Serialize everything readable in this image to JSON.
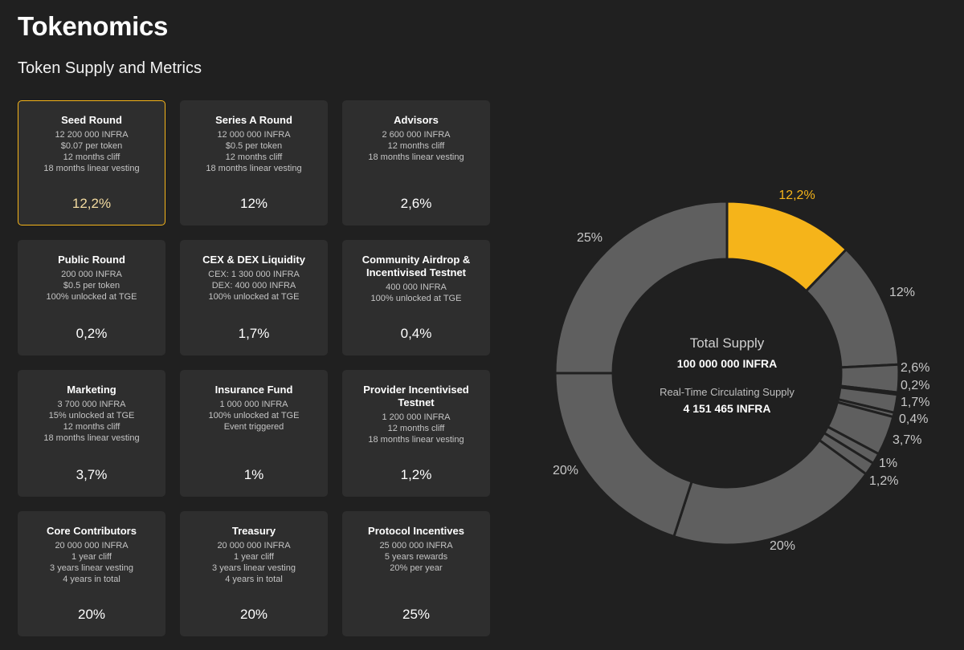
{
  "header": {
    "title": "Tokenomics",
    "subtitle": "Token Supply and Metrics"
  },
  "cards": [
    {
      "title": "Seed Round",
      "lines": [
        "12 200 000 INFRA",
        "$0.07 per token",
        "12 months cliff",
        "18 months linear vesting"
      ],
      "pct": "12,2%",
      "active": true
    },
    {
      "title": "Series A Round",
      "lines": [
        "12 000 000 INFRA",
        "$0.5 per token",
        "12 months cliff",
        "18 months linear vesting"
      ],
      "pct": "12%"
    },
    {
      "title": "Advisors",
      "lines": [
        "2 600 000 INFRA",
        "12 months cliff",
        "18 months linear vesting"
      ],
      "pct": "2,6%"
    },
    {
      "title": "Public Round",
      "lines": [
        "200 000 INFRA",
        "$0.5 per token",
        "100% unlocked at TGE"
      ],
      "pct": "0,2%"
    },
    {
      "title": "CEX & DEX Liquidity",
      "lines": [
        "CEX: 1 300 000 INFRA",
        "DEX: 400 000 INFRA",
        "100% unlocked at TGE"
      ],
      "pct": "1,7%"
    },
    {
      "title": "Community Airdrop & Incentivised Testnet",
      "lines": [
        "400 000 INFRA",
        "100% unlocked at TGE"
      ],
      "pct": "0,4%"
    },
    {
      "title": "Marketing",
      "lines": [
        "3 700 000 INFRA",
        "15% unlocked at TGE",
        "12 months cliff",
        "18 months linear vesting"
      ],
      "pct": "3,7%"
    },
    {
      "title": "Insurance Fund",
      "lines": [
        "1 000 000 INFRA",
        "100% unlocked at TGE",
        "Event triggered"
      ],
      "pct": "1%"
    },
    {
      "title": "Provider Incentivised Testnet",
      "lines": [
        "1 200 000 INFRA",
        "12 months cliff",
        "18 months linear vesting"
      ],
      "pct": "1,2%"
    },
    {
      "title": "Core Contributors",
      "lines": [
        "20 000 000 INFRA",
        "1 year cliff",
        "3 years linear vesting",
        "4 years in total"
      ],
      "pct": "20%"
    },
    {
      "title": "Treasury",
      "lines": [
        "20 000 000 INFRA",
        "1 year cliff",
        "3 years linear vesting",
        "4 years in total"
      ],
      "pct": "20%"
    },
    {
      "title": "Protocol Incentives",
      "lines": [
        "25 000 000 INFRA",
        "5 years rewards",
        "20% per year"
      ],
      "pct": "25%"
    }
  ],
  "supply": {
    "total_label": "Total Supply",
    "total_value": "100 000 000 INFRA",
    "circ_label": "Real-Time Circulating Supply",
    "circ_value": "4 151 465 INFRA"
  },
  "chart_data": {
    "type": "pie",
    "title": "",
    "categories": [
      "Seed Round",
      "Series A Round",
      "Advisors",
      "Public Round",
      "CEX & DEX Liquidity",
      "Community Airdrop & Incentivised Testnet",
      "Marketing",
      "Insurance Fund",
      "Provider Incentivised Testnet",
      "Core Contributors",
      "Treasury",
      "Protocol Incentives"
    ],
    "values": [
      12.2,
      12,
      2.6,
      0.2,
      1.7,
      0.4,
      3.7,
      1,
      1.2,
      20,
      20,
      25
    ],
    "labels": [
      "12,2%",
      "12%",
      "2,6%",
      "0,2%",
      "1,7%",
      "0,4%",
      "3,7%",
      "1%",
      "1,2%",
      "20%",
      "20%",
      "25%"
    ],
    "highlight_index": 0,
    "colors": {
      "highlight": "#f5b41a",
      "default": "#5f5f5f",
      "highlight_label": "#f5b41a",
      "default_label": "#c8c8c8",
      "separator": "#202020"
    },
    "legend": "none"
  }
}
